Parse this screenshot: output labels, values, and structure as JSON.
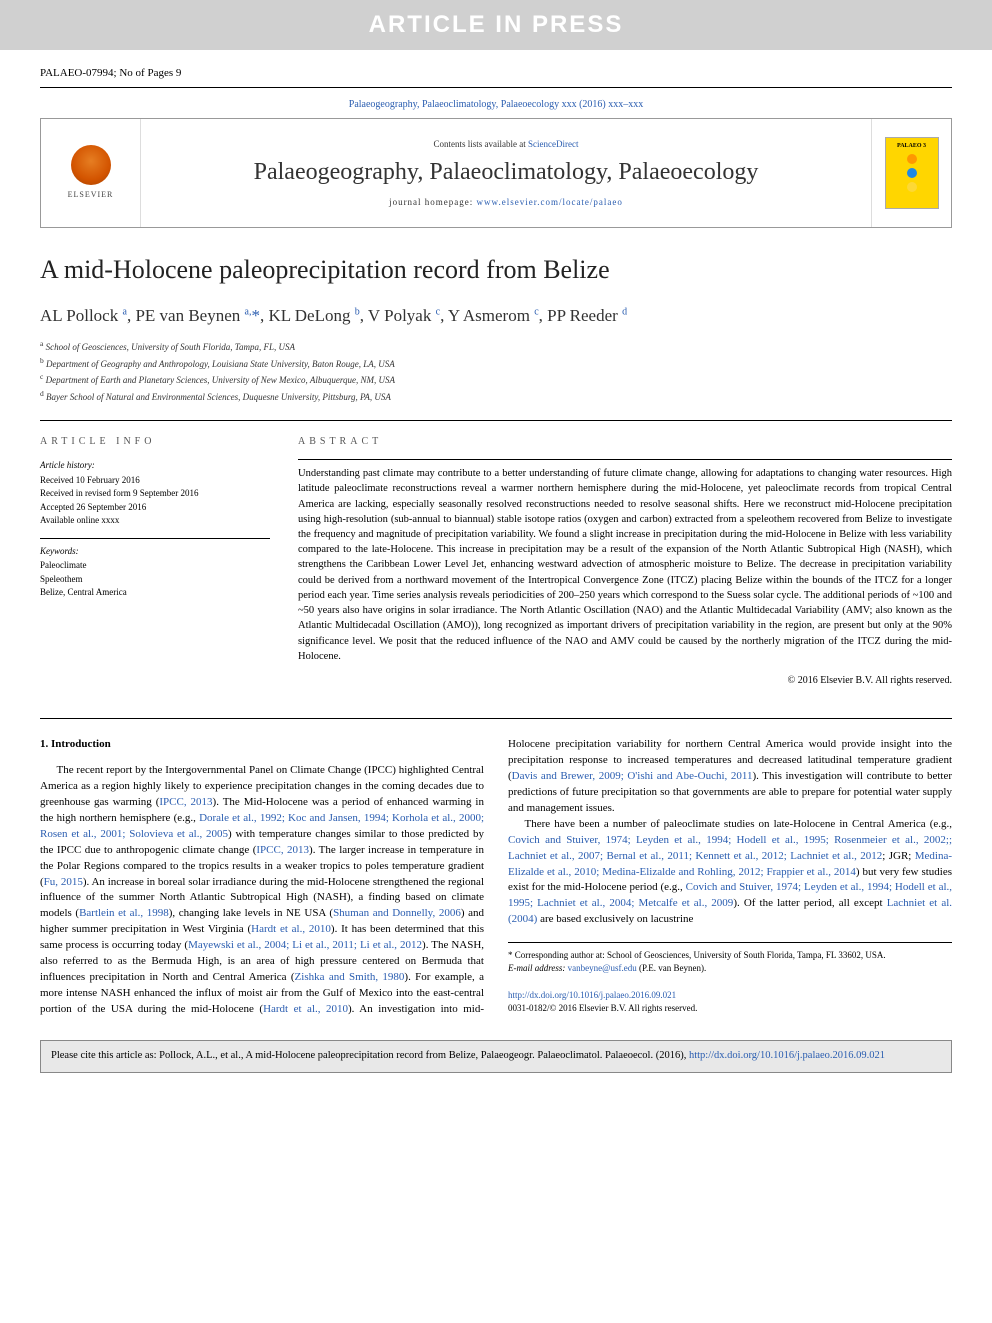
{
  "banner": {
    "text": "ARTICLE IN PRESS"
  },
  "header_line": "PALAEO-07994; No of Pages 9",
  "journal_ref": {
    "text": "Palaeogeography, Palaeoclimatology, Palaeoecology xxx (2016) xxx–xxx"
  },
  "masthead": {
    "contents_line_prefix": "Contents lists available at ",
    "contents_link": "ScienceDirect",
    "journal_title": "Palaeogeography, Palaeoclimatology, Palaeoecology",
    "homepage_prefix": "journal homepage: ",
    "homepage_url": "www.elsevier.com/locate/palaeo",
    "elsevier_label": "ELSEVIER",
    "cover_label": "PALAEO 3",
    "cover_dot_colors": [
      "#ff9800",
      "#1e88e5",
      "#fdd835"
    ]
  },
  "article": {
    "title": "A mid-Holocene paleoprecipitation record from Belize",
    "authors_html": "AL Pollock <sup>a</sup>, PE van Beynen <sup>a,</sup><span class='star'>*</span>, KL DeLong <sup>b</sup>, V Polyak <sup>c</sup>, Y Asmerom <sup>c</sup>, PP Reeder <sup>d</sup>",
    "affiliations": [
      "a  School of Geosciences, University of South Florida, Tampa, FL, USA",
      "b  Department of Geography and Anthropology, Louisiana State University, Baton Rouge, LA, USA",
      "c  Department of Earth and Planetary Sciences, University of New Mexico, Albuquerque, NM, USA",
      "d  Bayer School of Natural and Environmental Sciences, Duquesne University, Pittsburg, PA, USA"
    ]
  },
  "article_info": {
    "heading": "ARTICLE INFO",
    "history_label": "Article history:",
    "history_lines": [
      "Received 10 February 2016",
      "Received in revised form 9 September 2016",
      "Accepted 26 September 2016",
      "Available online xxxx"
    ],
    "keywords_label": "Keywords:",
    "keywords": [
      "Paleoclimate",
      "Speleothem",
      "Belize, Central America"
    ]
  },
  "abstract": {
    "heading": "ABSTRACT",
    "text": "Understanding past climate may contribute to a better understanding of future climate change, allowing for adaptations to changing water resources. High latitude paleoclimate reconstructions reveal a warmer northern hemisphere during the mid-Holocene, yet paleoclimate records from tropical Central America are lacking, especially seasonally resolved reconstructions needed to resolve seasonal shifts. Here we reconstruct mid-Holocene precipitation using high-resolution (sub-annual to biannual) stable isotope ratios (oxygen and carbon) extracted from a speleothem recovered from Belize to investigate the frequency and magnitude of precipitation variability. We found a slight increase in precipitation during the mid-Holocene in Belize with less variability compared to the late-Holocene. This increase in precipitation may be a result of the expansion of the North Atlantic Subtropical High (NASH), which strengthens the Caribbean Lower Level Jet, enhancing westward advection of atmospheric moisture to Belize. The decrease in precipitation variability could be derived from a northward movement of the Intertropical Convergence Zone (ITCZ) placing Belize within the bounds of the ITCZ for a longer period each year. Time series analysis reveals periodicities of 200–250 years which correspond to the Suess solar cycle. The additional periods of ~100 and ~50 years also have origins in solar irradiance. The North Atlantic Oscillation (NAO) and the Atlantic Multidecadal Variability (AMV; also known as the Atlantic Multidecadal Oscillation (AMO)), long recognized as important drivers of precipitation variability in the region, are present but only at the 90% significance level. We posit that the reduced influence of the NAO and AMV could be caused by the northerly migration of the ITCZ during the mid-Holocene.",
    "copyright": "© 2016 Elsevier B.V. All rights reserved."
  },
  "body": {
    "section_heading": "1. Introduction",
    "col1_para1_pre": "The recent report by the Intergovernmental Panel on Climate Change (IPCC) highlighted Central America as a region highly likely to experience precipitation changes in the coming decades due to greenhouse gas warming (",
    "col1_cite1": "IPCC, 2013",
    "col1_para1_mid1": "). The Mid-Holocene was a period of enhanced warming in the high northern hemisphere (e.g., ",
    "col1_cite2": "Dorale et al., 1992; Koc and Jansen, 1994; Korhola et al., 2000; Rosen et al., 2001; Solovieva et al., 2005",
    "col1_para1_mid2": ") with temperature changes similar to those predicted by the IPCC due to anthropogenic climate change (",
    "col1_cite3": "IPCC, 2013",
    "col1_para1_mid3": "). The larger increase in temperature in the Polar Regions compared to the tropics results in a weaker tropics to poles temperature gradient (",
    "col1_cite4": "Fu, 2015",
    "col1_para1_mid4": "). An increase in boreal solar irradiance during the mid-Holocene strengthened the regional influence of the summer North Atlantic Subtropical High (NASH), a finding based on climate models (",
    "col1_cite5": "Bartlein et al., 1998",
    "col1_para1_mid5": "), changing lake levels in NE USA (",
    "col1_cite6": "Shuman and Donnelly, 2006",
    "col1_para1_mid6": ") and higher summer precipitation in West Virginia (",
    "col1_cite7": "Hardt et al., 2010",
    "col1_para1_end": "). It has been determined that this same process is occurring today",
    "col2_pre": "(",
    "col2_cite1": "Mayewski et al., 2004; Li et al., 2011; Li et al., 2012",
    "col2_mid1": "). The NASH, also referred to as the Bermuda High, is an area of high pressure centered on Bermuda that influences precipitation in North and Central America (",
    "col2_cite2": "Zishka and Smith, 1980",
    "col2_mid2": "). For example, a more intense NASH enhanced the influx of moist air from the Gulf of Mexico into the east-central portion of the USA during the mid-Holocene (",
    "col2_cite3": "Hardt et al., 2010",
    "col2_mid3": "). An investigation into mid-Holocene precipitation variability for northern Central America would provide insight into the precipitation response to increased temperatures and decreased latitudinal temperature gradient (",
    "col2_cite4": "Davis and Brewer, 2009; O'ishi and Abe-Ouchi, 2011",
    "col2_mid4": "). This investigation will contribute to better predictions of future precipitation so that governments are able to prepare for potential water supply and management issues.",
    "col2_para2_pre": "There have been a number of paleoclimate studies on late-Holocene in Central America (e.g., ",
    "col2_cite5": "Covich and Stuiver, 1974; Leyden et al., 1994; Hodell et al., 1995; Rosenmeier et al., 2002;",
    "col2_cite5b": "; Lachniet et al., 2007; Bernal et al., 2011; Kennett et al., 2012; Lachniet et al., 2012",
    "col2_mid5": "; JGR; ",
    "col2_cite6": "Medina-Elizalde et al., 2010; Medina-Elizalde and Rohling, 2012; Frappier et al., 2014",
    "col2_mid6": ") but very few studies exist for the mid-Holocene period (e.g., ",
    "col2_cite7": "Covich and Stuiver, 1974; Leyden et al., 1994; Hodell et al., 1995; Lachniet et al., 2004; Metcalfe et al., 2009",
    "col2_mid7": "). Of the latter period, all except ",
    "col2_cite8": "Lachniet et al. (2004)",
    "col2_end": " are based exclusively on lacustrine"
  },
  "footnote": {
    "marker": "*",
    "text": " Corresponding author at: School of Geosciences, University of South Florida, Tampa, FL 33602, USA.",
    "email_label": "E-mail address: ",
    "email": "vanbeyne@usf.edu",
    "email_suffix": " (P.E. van Beynen)."
  },
  "doi": {
    "url": "http://dx.doi.org/10.1016/j.palaeo.2016.09.021",
    "issn_line": "0031-0182/© 2016 Elsevier B.V. All rights reserved."
  },
  "cite_box": {
    "text_pre": "Please cite this article as: Pollock, A.L., et al., A mid-Holocene paleoprecipitation record from Belize, Palaeogeogr. Palaeoclimatol. Palaeoecol. (2016), ",
    "url": "http://dx.doi.org/10.1016/j.palaeo.2016.09.021"
  },
  "colors": {
    "link": "#2a5db0",
    "banner_bg": "#d0d0d0",
    "cite_box_bg": "#e8e8e8"
  }
}
